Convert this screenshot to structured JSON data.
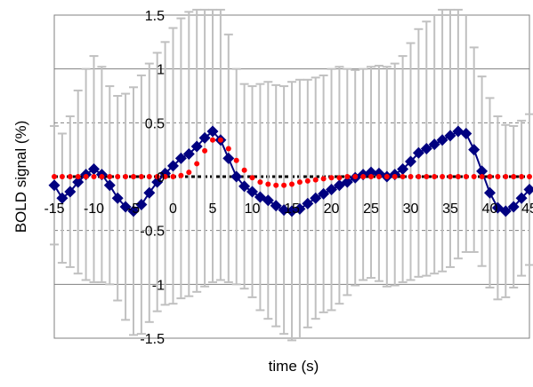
{
  "chart_data": {
    "type": "line",
    "xlabel": "time (s)",
    "ylabel": "BOLD signal (%)",
    "xlim": [
      -15,
      45
    ],
    "ylim": [
      -1.5,
      1.5
    ],
    "x_ticks": [
      "-15",
      "-10",
      "-5",
      "0",
      "5",
      "10",
      "15",
      "20",
      "25",
      "30",
      "35",
      "40",
      "45"
    ],
    "y_ticks": [
      "1.5",
      "1",
      "0.5",
      "0",
      "-0.5",
      "-1",
      "-1.5"
    ],
    "grid": "horizontal dashed at 0.5 steps, solid at integers",
    "legend": "none",
    "colors": {
      "measured": "#000080",
      "error_bars": "#c0c0c0",
      "model": "#ff0000",
      "baseline": "#000000",
      "grid": "#808080"
    },
    "series": [
      {
        "role": "measured",
        "marker": "diamond",
        "x": [
          -15,
          -14,
          -13,
          -12,
          -11,
          -10,
          -9,
          -8,
          -7,
          -6,
          -5,
          -4,
          -3,
          -2,
          -1,
          0,
          1,
          2,
          3,
          4,
          5,
          6,
          7,
          8,
          9,
          10,
          11,
          12,
          13,
          14,
          15,
          16,
          17,
          18,
          19,
          20,
          21,
          22,
          23,
          24,
          25,
          26,
          27,
          28,
          29,
          30,
          31,
          32,
          33,
          34,
          35,
          36,
          37,
          38,
          39,
          40,
          41,
          42,
          43,
          44,
          45
        ],
        "y": [
          -0.08,
          -0.2,
          -0.14,
          -0.05,
          0.02,
          0.07,
          0.02,
          -0.08,
          -0.2,
          -0.28,
          -0.32,
          -0.26,
          -0.15,
          -0.05,
          0.03,
          0.1,
          0.17,
          0.21,
          0.28,
          0.36,
          0.42,
          0.34,
          0.17,
          0.0,
          -0.09,
          -0.14,
          -0.19,
          -0.22,
          -0.27,
          -0.31,
          -0.32,
          -0.3,
          -0.25,
          -0.2,
          -0.16,
          -0.12,
          -0.08,
          -0.05,
          -0.01,
          0.02,
          0.04,
          0.03,
          0.0,
          0.02,
          0.07,
          0.14,
          0.22,
          0.26,
          0.3,
          0.34,
          0.38,
          0.42,
          0.4,
          0.25,
          0.05,
          -0.15,
          -0.29,
          -0.32,
          -0.28,
          -0.2,
          -0.12
        ],
        "error": [
          0.55,
          0.6,
          0.7,
          0.85,
          0.98,
          1.05,
          1.0,
          0.92,
          0.95,
          1.05,
          1.15,
          1.2,
          1.2,
          1.2,
          1.22,
          1.28,
          1.3,
          1.32,
          1.35,
          1.38,
          1.4,
          1.3,
          1.15,
          1.0,
          0.95,
          0.98,
          1.05,
          1.1,
          1.12,
          1.15,
          1.2,
          1.2,
          1.15,
          1.12,
          1.1,
          1.12,
          1.1,
          1.05,
          1.0,
          0.98,
          0.98,
          1.0,
          1.02,
          1.03,
          1.05,
          1.1,
          1.15,
          1.18,
          1.2,
          1.22,
          1.22,
          1.18,
          1.1,
          0.95,
          0.88,
          0.88,
          0.85,
          0.8,
          0.75,
          0.72,
          0.7
        ]
      },
      {
        "role": "model",
        "marker": "circle",
        "x": [
          -15,
          -14,
          -13,
          -12,
          -11,
          -10,
          -9,
          -8,
          -7,
          -6,
          -5,
          -4,
          -3,
          -2,
          -1,
          0,
          1,
          2,
          3,
          4,
          5,
          6,
          7,
          8,
          9,
          10,
          11,
          12,
          13,
          14,
          15,
          16,
          17,
          18,
          19,
          20,
          21,
          22,
          23,
          24,
          25,
          26,
          27,
          28,
          29,
          30,
          31,
          32,
          33,
          34,
          35,
          36,
          37,
          38,
          39,
          40,
          41,
          42,
          43,
          44,
          45
        ],
        "y": [
          0,
          0,
          0,
          0,
          0,
          0,
          0,
          0,
          0,
          0,
          0,
          0,
          0,
          0,
          0,
          0,
          0.01,
          0.04,
          0.12,
          0.24,
          0.34,
          0.34,
          0.26,
          0.15,
          0.06,
          -0.01,
          -0.05,
          -0.07,
          -0.08,
          -0.08,
          -0.07,
          -0.05,
          -0.04,
          -0.03,
          -0.02,
          -0.01,
          -0.01,
          0,
          0,
          0,
          0,
          0,
          0,
          0,
          0,
          0,
          0,
          0,
          0,
          0,
          0,
          0,
          0,
          0,
          0,
          0,
          0,
          0,
          0,
          0,
          0
        ]
      }
    ]
  }
}
